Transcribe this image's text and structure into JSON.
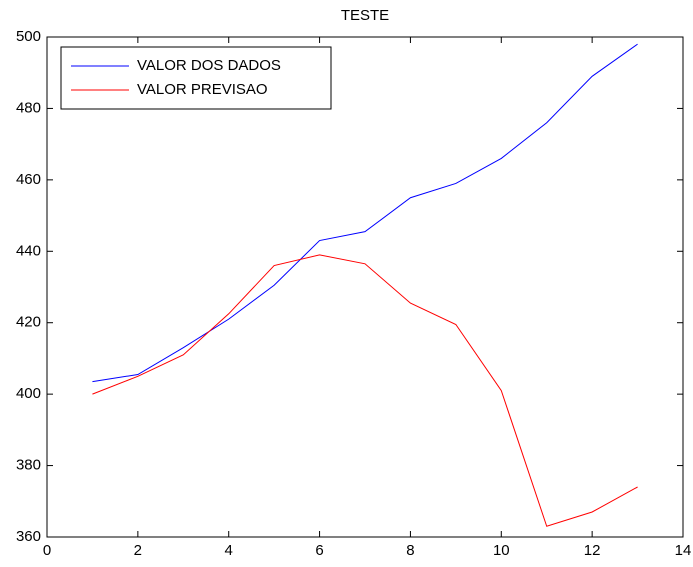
{
  "chart_data": {
    "type": "line",
    "title": "TESTE",
    "x": [
      1,
      2,
      3,
      4,
      5,
      6,
      7,
      8,
      9,
      10,
      11,
      12,
      13
    ],
    "series": [
      {
        "name": "VALOR DOS DADOS",
        "color": "#0000ff",
        "values": [
          403.5,
          405.5,
          413,
          421,
          430.5,
          443,
          445.5,
          455,
          459,
          466,
          476,
          489,
          498
        ]
      },
      {
        "name": "VALOR PREVISAO",
        "color": "#ff0000",
        "values": [
          400,
          405,
          411,
          422.5,
          436,
          439,
          436.5,
          425.5,
          419.5,
          401,
          363,
          367,
          374
        ]
      }
    ],
    "xlim": [
      0,
      14
    ],
    "xticks": [
      0,
      2,
      4,
      6,
      8,
      10,
      12,
      14
    ],
    "ylim": [
      360,
      500
    ],
    "yticks": [
      360,
      380,
      400,
      420,
      440,
      460,
      480,
      500
    ],
    "grid": false,
    "legend": "upper left"
  }
}
